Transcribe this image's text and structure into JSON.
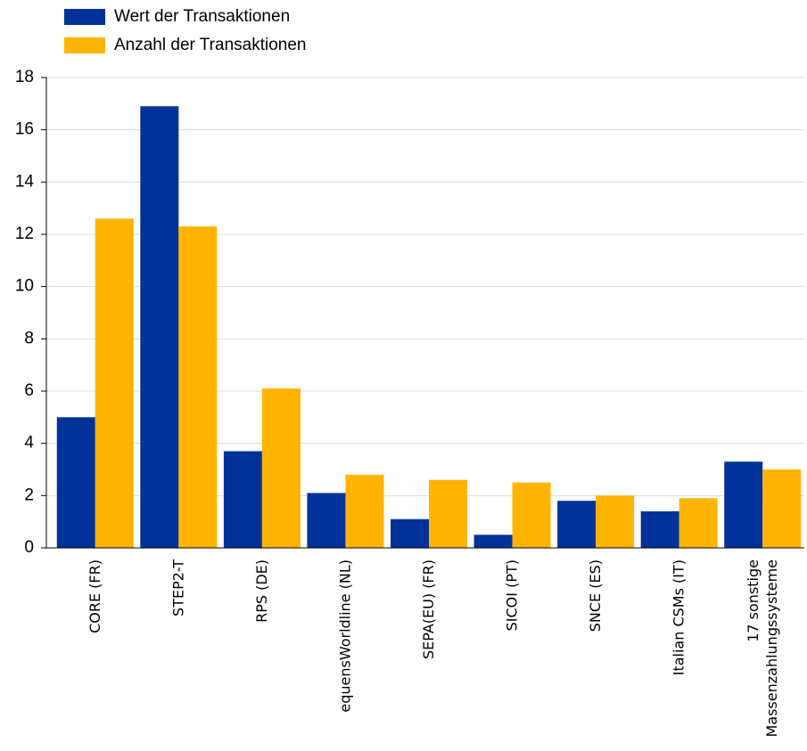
{
  "chart_data": {
    "type": "bar",
    "categories": [
      "CORE (FR)",
      "STEP2-T",
      "RPS (DE)",
      "equensWorldline (NL)",
      "SEPA(EU) (FR)",
      "SICOI (PT)",
      "SNCE (ES)",
      "Italian CSMs (IT)",
      "17 sonstige\nMassenzahlungssysteme"
    ],
    "series": [
      {
        "name": "Wert der Transaktionen",
        "color": "#003299",
        "values": [
          5.0,
          16.9,
          3.7,
          2.1,
          1.1,
          0.5,
          1.8,
          1.4,
          3.3
        ]
      },
      {
        "name": "Anzahl der Transaktionen",
        "color": "#ffb400",
        "values": [
          12.6,
          12.3,
          6.1,
          2.8,
          2.6,
          2.5,
          2.0,
          1.9,
          3.0
        ]
      }
    ],
    "ylim": [
      0,
      18
    ],
    "yticks": [
      0,
      2,
      4,
      6,
      8,
      10,
      12,
      14,
      16,
      18
    ],
    "grid": true,
    "legend": "top-left"
  }
}
